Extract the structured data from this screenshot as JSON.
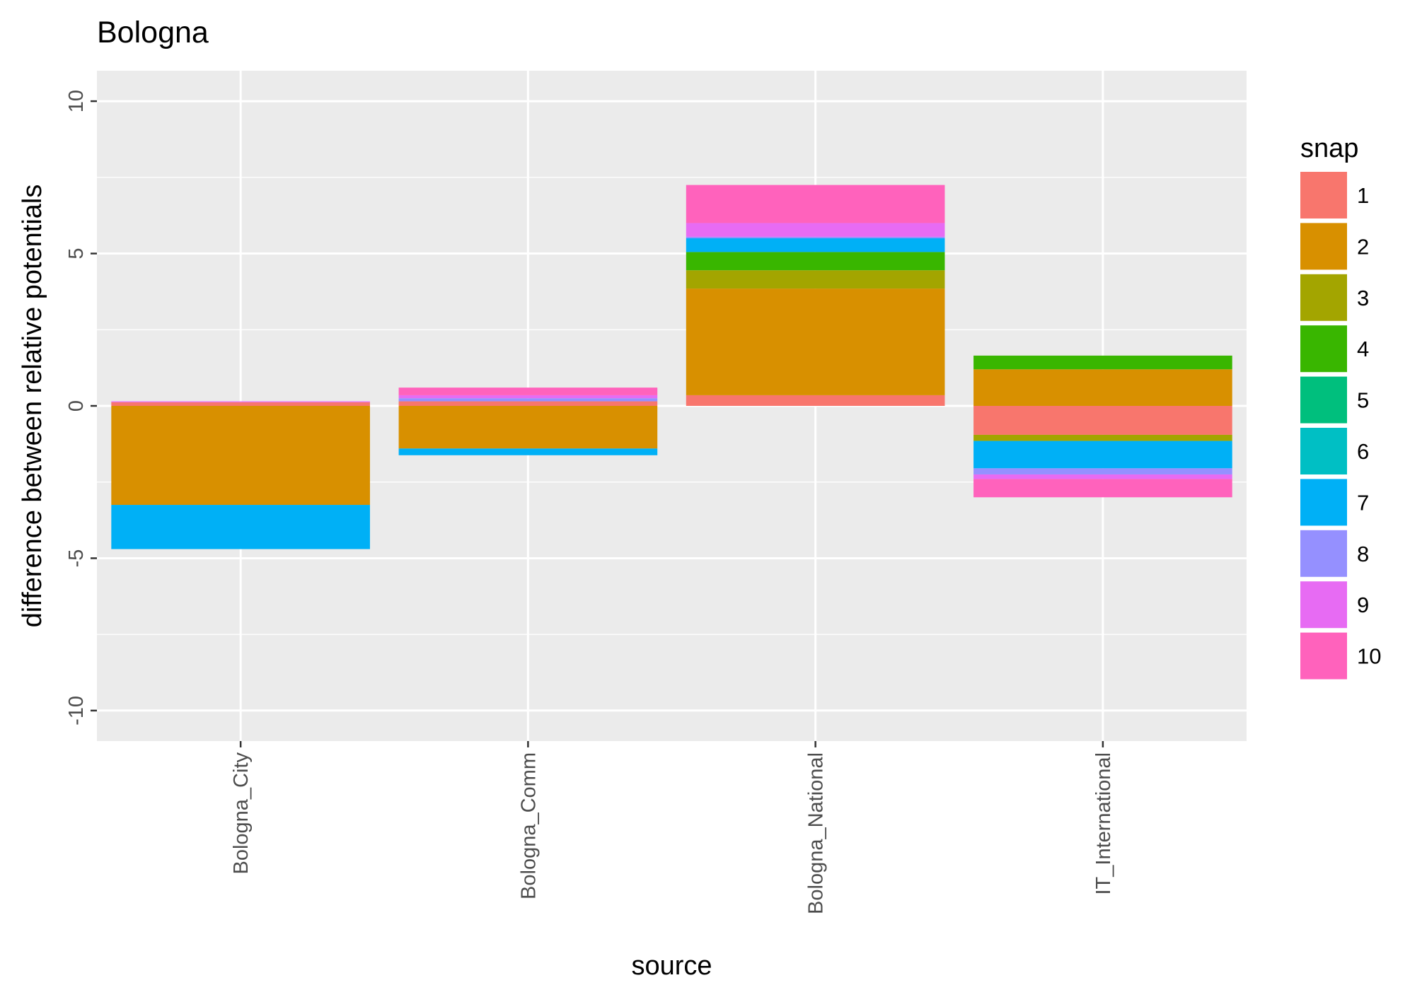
{
  "chart_data": {
    "type": "bar",
    "stacked": true,
    "title": "Bologna",
    "xlabel": "source",
    "ylabel": "difference between relative potentials",
    "ylim": [
      -11,
      11
    ],
    "yticks": [
      -10,
      -5,
      0,
      5,
      10
    ],
    "ytick_labels": [
      "-10",
      "-5",
      "0",
      "5",
      "10"
    ],
    "grid": true,
    "legend": {
      "title": "snap",
      "position": "right"
    },
    "categories": [
      "Bologna_City",
      "Bologna_Comm",
      "Bologna_National",
      "IT_International"
    ],
    "series": [
      {
        "name": "1",
        "color": "#F8766D",
        "values": [
          0.12,
          0.15,
          0.35,
          -0.95
        ]
      },
      {
        "name": "2",
        "color": "#D89000",
        "values": [
          -3.25,
          -1.4,
          3.5,
          1.2
        ]
      },
      {
        "name": "3",
        "color": "#A3A500",
        "values": [
          0,
          0,
          0.6,
          -0.2
        ]
      },
      {
        "name": "4",
        "color": "#39B600",
        "values": [
          0,
          0,
          0.6,
          0.45
        ]
      },
      {
        "name": "5",
        "color": "#00BF7D",
        "values": [
          0,
          0,
          0,
          0
        ]
      },
      {
        "name": "6",
        "color": "#00BFC4",
        "values": [
          0,
          0,
          0,
          0
        ]
      },
      {
        "name": "7",
        "color": "#00B0F6",
        "values": [
          -1.45,
          -0.22,
          0.45,
          -0.9
        ]
      },
      {
        "name": "8",
        "color": "#9590FF",
        "values": [
          0,
          0.1,
          0.05,
          -0.2
        ]
      },
      {
        "name": "9",
        "color": "#E76BF3",
        "values": [
          0.03,
          0.1,
          0.45,
          -0.15
        ]
      },
      {
        "name": "10",
        "color": "#FF62BC",
        "values": [
          0,
          0.25,
          1.25,
          -0.6
        ]
      }
    ]
  },
  "colors": {
    "panel": "#EBEBEB",
    "grid": "#FFFFFF"
  }
}
